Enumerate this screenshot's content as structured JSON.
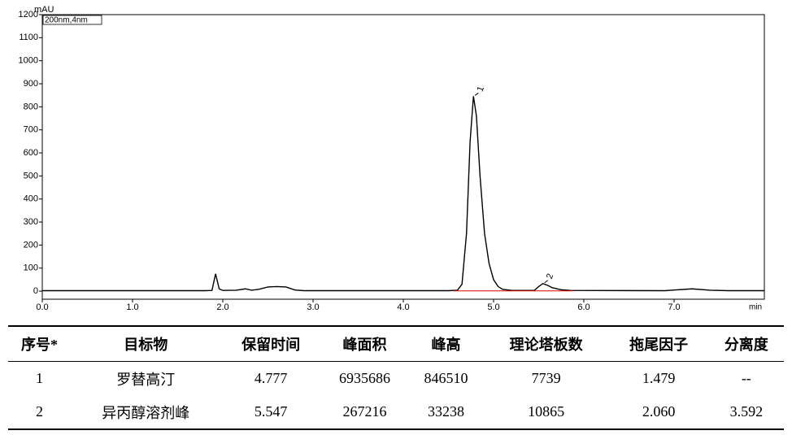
{
  "chart_data": {
    "type": "line",
    "y_label": "mAU",
    "x_label": "min",
    "annotation": "200nm,4nm",
    "xlim": [
      0,
      8.0
    ],
    "ylim": [
      -35,
      1200
    ],
    "xticks": [
      {
        "value": 0,
        "label": "0.0"
      },
      {
        "value": 1,
        "label": "1.0"
      },
      {
        "value": 2,
        "label": "2.0"
      },
      {
        "value": 3,
        "label": "3.0"
      },
      {
        "value": 4,
        "label": "4.0"
      },
      {
        "value": 5,
        "label": "5.0"
      },
      {
        "value": 6,
        "label": "6.0"
      },
      {
        "value": 7,
        "label": "7.0"
      }
    ],
    "yticks": [
      0,
      100,
      200,
      300,
      400,
      500,
      600,
      700,
      800,
      900,
      1000,
      1100,
      1200
    ],
    "series": [
      {
        "color": "#000000",
        "x": [
          0,
          1.8,
          1.88,
          1.92,
          1.96,
          2.0,
          2.15,
          2.25,
          2.32,
          2.4,
          2.5,
          2.6,
          2.7,
          2.8,
          2.9,
          4.5,
          4.6,
          4.65,
          4.7,
          4.74,
          4.777,
          4.81,
          4.85,
          4.9,
          4.95,
          5.0,
          5.05,
          5.1,
          5.2,
          5.45,
          5.5,
          5.547,
          5.6,
          5.65,
          5.75,
          5.85,
          6.9,
          7.0,
          7.2,
          7.4,
          7.6,
          8.0
        ],
        "values": [
          2,
          2,
          3,
          75,
          10,
          3,
          4,
          10,
          4,
          8,
          18,
          20,
          18,
          5,
          2,
          2,
          4,
          30,
          250,
          650,
          846,
          760,
          500,
          250,
          120,
          50,
          20,
          8,
          3,
          3,
          20,
          33,
          25,
          15,
          6,
          3,
          2,
          5,
          10,
          4,
          2,
          2
        ]
      },
      {
        "color": "#e00000",
        "x": [
          4.55,
          5.45,
          5.5,
          5.88
        ],
        "values": [
          1,
          1,
          1,
          1
        ]
      }
    ],
    "peak_labels": [
      {
        "text": "1",
        "x": 4.777,
        "y": 846
      },
      {
        "text": "2",
        "x": 5.547,
        "y": 33
      }
    ]
  },
  "table": {
    "headers": [
      "序号*",
      "目标物",
      "保留时间",
      "峰面积",
      "峰高",
      "理论塔板数",
      "拖尾因子",
      "分离度"
    ],
    "rows": [
      [
        "1",
        "罗替高汀",
        "4.777",
        "6935686",
        "846510",
        "7739",
        "1.479",
        "--"
      ],
      [
        "2",
        "异丙醇溶剂峰",
        "5.547",
        "267216",
        "33238",
        "10865",
        "2.060",
        "3.592"
      ]
    ]
  }
}
